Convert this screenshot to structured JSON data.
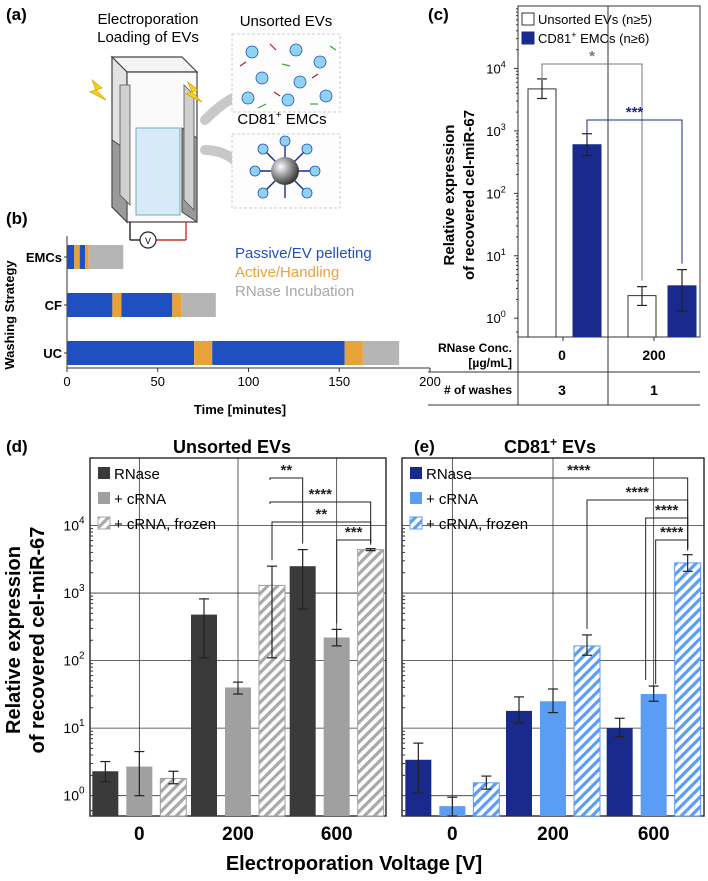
{
  "panels": {
    "a": {
      "label": "(a)",
      "title_line1": "Electroporation",
      "title_line2": "Loading of EVs",
      "unsorted_label": "Unsorted EVs",
      "cd81_label": "CD81",
      "cd81_sup": "+",
      "cd81_suffix": " EMCs",
      "volt_symbol": "V"
    },
    "b": {
      "label": "(b)"
    },
    "c": {
      "label": "(c)"
    },
    "d": {
      "label": "(d)"
    },
    "e": {
      "label": "(e)"
    }
  },
  "colors": {
    "navy": "#1a2a8c",
    "blue": "#1f4fc0",
    "orange": "#e8a23a",
    "gray": "#b5b5b5",
    "dark": "#3a3a3a",
    "midgray": "#a0a0a0",
    "lightblue": "#5b9cf5"
  },
  "chart_data": [
    {
      "id": "b",
      "type": "bar",
      "orientation": "horizontal-stacked",
      "ylabel": "Washing Strategy",
      "xlabel": "Time [minutes]",
      "xlim": [
        0,
        200
      ],
      "xticks": [
        "0",
        "50",
        "100",
        "150",
        "200"
      ],
      "categories": [
        "EMCs",
        "CF",
        "UC"
      ],
      "legend": [
        "Passive/EV pelleting",
        "Active/Handling",
        "RNase Incubation"
      ],
      "segments": [
        [
          {
            "kind": "Passive/EV pelleting",
            "start": 0,
            "end": 4
          },
          {
            "kind": "Active/Handling",
            "start": 4,
            "end": 7
          },
          {
            "kind": "Passive/EV pelleting",
            "start": 7,
            "end": 10
          },
          {
            "kind": "Active/Handling",
            "start": 10,
            "end": 12
          },
          {
            "kind": "RNase Incubation",
            "start": 12,
            "end": 31
          }
        ],
        [
          {
            "kind": "Passive/EV pelleting",
            "start": 0,
            "end": 25
          },
          {
            "kind": "Active/Handling",
            "start": 25,
            "end": 30
          },
          {
            "kind": "Passive/EV pelleting",
            "start": 30,
            "end": 58
          },
          {
            "kind": "Active/Handling",
            "start": 58,
            "end": 63
          },
          {
            "kind": "RNase Incubation",
            "start": 63,
            "end": 82
          }
        ],
        [
          {
            "kind": "Passive/EV pelleting",
            "start": 0,
            "end": 70
          },
          {
            "kind": "Active/Handling",
            "start": 70,
            "end": 80
          },
          {
            "kind": "Passive/EV pelleting",
            "start": 80,
            "end": 153
          },
          {
            "kind": "Active/Handling",
            "start": 153,
            "end": 163
          },
          {
            "kind": "RNase Incubation",
            "start": 163,
            "end": 183
          }
        ]
      ]
    },
    {
      "id": "c",
      "type": "bar",
      "scale": "log",
      "ylabel_line1": "Relative expression",
      "ylabel_line2": "of recovered cel-miR-67",
      "ylim": [
        0.5,
        100000
      ],
      "yticks": [
        {
          "v": 1,
          "label": "10",
          "exp": "0"
        },
        {
          "v": 10,
          "label": "10",
          "exp": "1"
        },
        {
          "v": 100,
          "label": "10",
          "exp": "2"
        },
        {
          "v": 1000,
          "label": "10",
          "exp": "3"
        },
        {
          "v": 10000,
          "label": "10",
          "exp": "4"
        }
      ],
      "legend": [
        {
          "name": "Unsorted EVs (n≥5)"
        },
        {
          "name": "CD81",
          "sup": "+",
          "suffix": " EMCs (n≥6)"
        }
      ],
      "groups": [
        "0",
        "200"
      ],
      "series": [
        {
          "name": "Unsorted EVs",
          "values": [
            4700,
            2.3
          ],
          "err_low": [
            3300,
            1.6
          ],
          "err_high": [
            6800,
            3.2
          ]
        },
        {
          "name": "CD81+ EMCs",
          "values": [
            600,
            3.3
          ],
          "err_low": [
            400,
            1.3
          ],
          "err_high": [
            900,
            6.0
          ]
        }
      ],
      "significance": [
        {
          "label": "*"
        },
        {
          "label": "***"
        }
      ],
      "table": {
        "row1_header_line1": "RNase Conc.",
        "row1_header_line2": "[µg/mL]",
        "row1_values": [
          "0",
          "200"
        ],
        "row2_header": "# of washes",
        "row2_values": [
          "3",
          "1"
        ]
      }
    },
    {
      "id": "d",
      "type": "bar",
      "scale": "log",
      "title": "Unsorted EVs",
      "ylabel_line1": "Relative expression",
      "ylabel_line2": "of recovered cel-miR-67",
      "xlabel": "Electroporation Voltage [V]",
      "ylim": [
        0.5,
        100000
      ],
      "categories": [
        "0",
        "200",
        "600"
      ],
      "legend": [
        "RNase",
        "+ cRNA",
        "+ cRNA, frozen"
      ],
      "series": [
        {
          "name": "RNase",
          "values": [
            2.3,
            480,
            2500
          ],
          "err_low": [
            1.6,
            110,
            580
          ],
          "err_high": [
            3.2,
            820,
            4400
          ]
        },
        {
          "name": "+ cRNA",
          "values": [
            2.7,
            40,
            220
          ],
          "err_low": [
            1.0,
            32,
            165
          ],
          "err_high": [
            4.5,
            48,
            290
          ]
        },
        {
          "name": "+ cRNA, frozen",
          "values": [
            1.8,
            1300,
            4400
          ],
          "err_low": [
            1.5,
            110,
            4250
          ],
          "err_high": [
            2.3,
            2500,
            4550
          ]
        }
      ],
      "significance": [
        {
          "label": "**"
        },
        {
          "label": "****"
        },
        {
          "label": "**"
        },
        {
          "label": "***"
        }
      ]
    },
    {
      "id": "e",
      "type": "bar",
      "scale": "log",
      "title": "CD81",
      "title_sup": "+",
      "title_suffix": " EVs",
      "ylim": [
        0.5,
        100000
      ],
      "categories": [
        "0",
        "200",
        "600"
      ],
      "legend": [
        "RNase",
        "+ cRNA",
        "+ cRNA, frozen"
      ],
      "series": [
        {
          "name": "RNase",
          "values": [
            3.4,
            18,
            10
          ],
          "err_low": [
            1.1,
            12,
            7.5
          ],
          "err_high": [
            6.0,
            29,
            14
          ]
        },
        {
          "name": "+ cRNA",
          "values": [
            0.7,
            25,
            32
          ],
          "err_low": [
            0.5,
            17,
            25
          ],
          "err_high": [
            0.95,
            38,
            42
          ]
        },
        {
          "name": "+ cRNA, frozen",
          "values": [
            1.55,
            165,
            2800
          ],
          "err_low": [
            1.25,
            120,
            2100
          ],
          "err_high": [
            1.95,
            240,
            3700
          ]
        }
      ],
      "significance": [
        {
          "label": "****"
        },
        {
          "label": "****"
        },
        {
          "label": "****"
        },
        {
          "label": "****"
        }
      ]
    }
  ]
}
